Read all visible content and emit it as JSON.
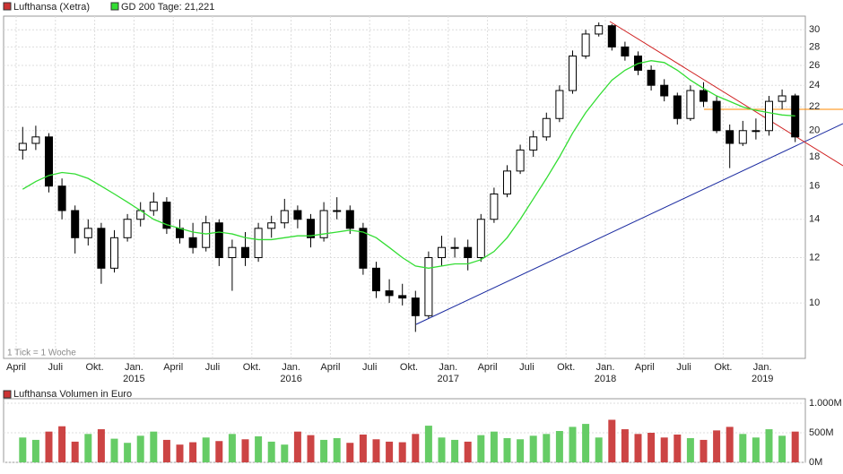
{
  "chart_data": {
    "type": "candlestick",
    "title": "Lufthansa (Xetra)",
    "note": "1 Tick = 1 Woche",
    "categories": [
      "April",
      null,
      null,
      "Juli",
      null,
      null,
      "Okt.",
      null,
      null,
      "Jan.",
      null,
      null,
      "April",
      null,
      null,
      "Juli",
      null,
      null,
      "Okt.",
      null,
      null,
      "Jan.",
      null,
      null,
      "April",
      null,
      null,
      "Juli",
      null,
      null,
      "Okt.",
      null,
      null,
      "Jan.",
      null,
      null,
      "April",
      null,
      null,
      "Juli",
      null,
      null,
      "Okt.",
      null,
      null,
      "Jan.",
      null,
      null,
      "April",
      null,
      null,
      "Juli",
      null,
      null,
      "Okt.",
      null,
      null,
      "Jan.",
      null,
      null
    ],
    "years": [
      "2015",
      "2016",
      "2017",
      "2018",
      "2019"
    ],
    "open": [
      18.5,
      19,
      19.5,
      16,
      14.5,
      13,
      13.5,
      11.5,
      13,
      14,
      14.5,
      15,
      13.5,
      13,
      12.5,
      13.8,
      12,
      12.5,
      12,
      13.5,
      13.8,
      14.5,
      14,
      13,
      14.5,
      14.5,
      13.5,
      11.5,
      10.5,
      10.3,
      10.2,
      9.5,
      12,
      12.5,
      12.5,
      12,
      14,
      15.5,
      17,
      18.5,
      19.5,
      21,
      23.5,
      27,
      29.5,
      30.5,
      28,
      27,
      25.5,
      24,
      23,
      21,
      23.5,
      22.5,
      20,
      19,
      20,
      20,
      22.5,
      23
    ],
    "high": [
      20.3,
      20.4,
      19.8,
      16.5,
      14.8,
      14,
      13.8,
      13.4,
      14.3,
      15,
      15.6,
      15.3,
      14,
      13.8,
      14.2,
      14,
      12.9,
      13.3,
      13.8,
      14.2,
      15.2,
      14.8,
      14.3,
      15,
      15.3,
      14.8,
      13.8,
      11.8,
      11,
      10.8,
      10.5,
      12.3,
      13.1,
      13,
      12.9,
      14.3,
      15.9,
      17.4,
      18.9,
      20,
      21.5,
      24,
      27.6,
      30,
      30.9,
      30.7,
      28.6,
      27.5,
      26,
      24.6,
      23.3,
      24,
      24.3,
      23,
      20.5,
      20.8,
      21,
      23,
      23.6,
      23.2
    ],
    "low": [
      17.8,
      18.5,
      15.6,
      14,
      12.2,
      12.6,
      10.8,
      11.3,
      12.8,
      13.6,
      14.2,
      13.2,
      12.7,
      12.2,
      12.3,
      11.6,
      10.5,
      11.6,
      11.8,
      13,
      13.5,
      13.5,
      12.5,
      12.8,
      14,
      13.2,
      11.2,
      10.2,
      10,
      9.9,
      8.9,
      9.4,
      11.6,
      12,
      11.4,
      11.8,
      13.8,
      15.3,
      16.8,
      18,
      19.2,
      20.7,
      23.2,
      26.7,
      29.2,
      27.6,
      26.5,
      25,
      23.5,
      22.5,
      20.5,
      20.8,
      22,
      19.8,
      17.2,
      18.8,
      19.3,
      19.6,
      21.8,
      19.1
    ],
    "close": [
      19,
      19.5,
      16,
      14.5,
      13,
      13.5,
      11.5,
      13,
      14,
      14.5,
      15,
      13.5,
      13,
      12.5,
      13.8,
      12,
      12.5,
      12,
      13.5,
      13.8,
      14.5,
      14,
      13,
      14.5,
      14.5,
      13.5,
      11.5,
      10.5,
      10.3,
      10.2,
      9.5,
      12,
      12.5,
      12.5,
      12,
      14,
      15.5,
      17,
      18.5,
      19.5,
      21,
      23.5,
      27,
      29.5,
      30.5,
      28,
      27,
      25.5,
      24,
      23,
      21,
      23.5,
      22.5,
      20,
      19,
      20,
      20,
      22.5,
      23,
      19.5
    ],
    "ma": {
      "name": "GD 200 Tage: 21,221",
      "color": "#33dd33",
      "values": [
        15.8,
        16.3,
        16.7,
        16.9,
        16.8,
        16.5,
        16.0,
        15.5,
        15.0,
        14.5,
        14.0,
        13.7,
        13.5,
        13.3,
        13.2,
        13.3,
        13.2,
        13.0,
        12.9,
        12.9,
        13.0,
        13.1,
        13.1,
        13.2,
        13.3,
        13.4,
        13.3,
        13.0,
        12.5,
        12.0,
        11.6,
        11.5,
        11.6,
        11.7,
        11.7,
        11.9,
        12.3,
        13.0,
        14.0,
        15.2,
        16.5,
        18.0,
        19.8,
        21.5,
        23.0,
        24.5,
        25.5,
        26.2,
        26.5,
        26.3,
        25.5,
        24.5,
        23.7,
        23.0,
        22.5,
        22.0,
        21.7,
        21.5,
        21.3,
        21.221
      ]
    },
    "log_scale": true,
    "grid": true,
    "ylim": [
      8,
      31.7
    ],
    "yticks": [
      10,
      12,
      14,
      16,
      18,
      20,
      22,
      24,
      26,
      28,
      30
    ],
    "volume": {
      "name": "Lufthansa Volumen in Euro",
      "up_color": "#66cc66",
      "down_color": "#cc4444",
      "values": [
        420,
        380,
        520,
        610,
        350,
        480,
        560,
        400,
        330,
        450,
        520,
        380,
        300,
        340,
        420,
        360,
        480,
        390,
        440,
        350,
        300,
        520,
        460,
        380,
        410,
        330,
        470,
        390,
        350,
        340,
        480,
        620,
        420,
        380,
        350,
        460,
        520,
        410,
        390,
        450,
        480,
        530,
        600,
        650,
        420,
        720,
        560,
        480,
        500,
        420,
        470,
        410,
        380,
        540,
        600,
        480,
        420,
        560,
        450,
        520
      ],
      "ylim": [
        0,
        1000
      ],
      "yticks": [
        {
          "value": 0,
          "label": "0M"
        },
        {
          "value": 500,
          "label": "500M"
        },
        {
          "value": 1000,
          "label": "1.000M"
        }
      ]
    }
  }
}
